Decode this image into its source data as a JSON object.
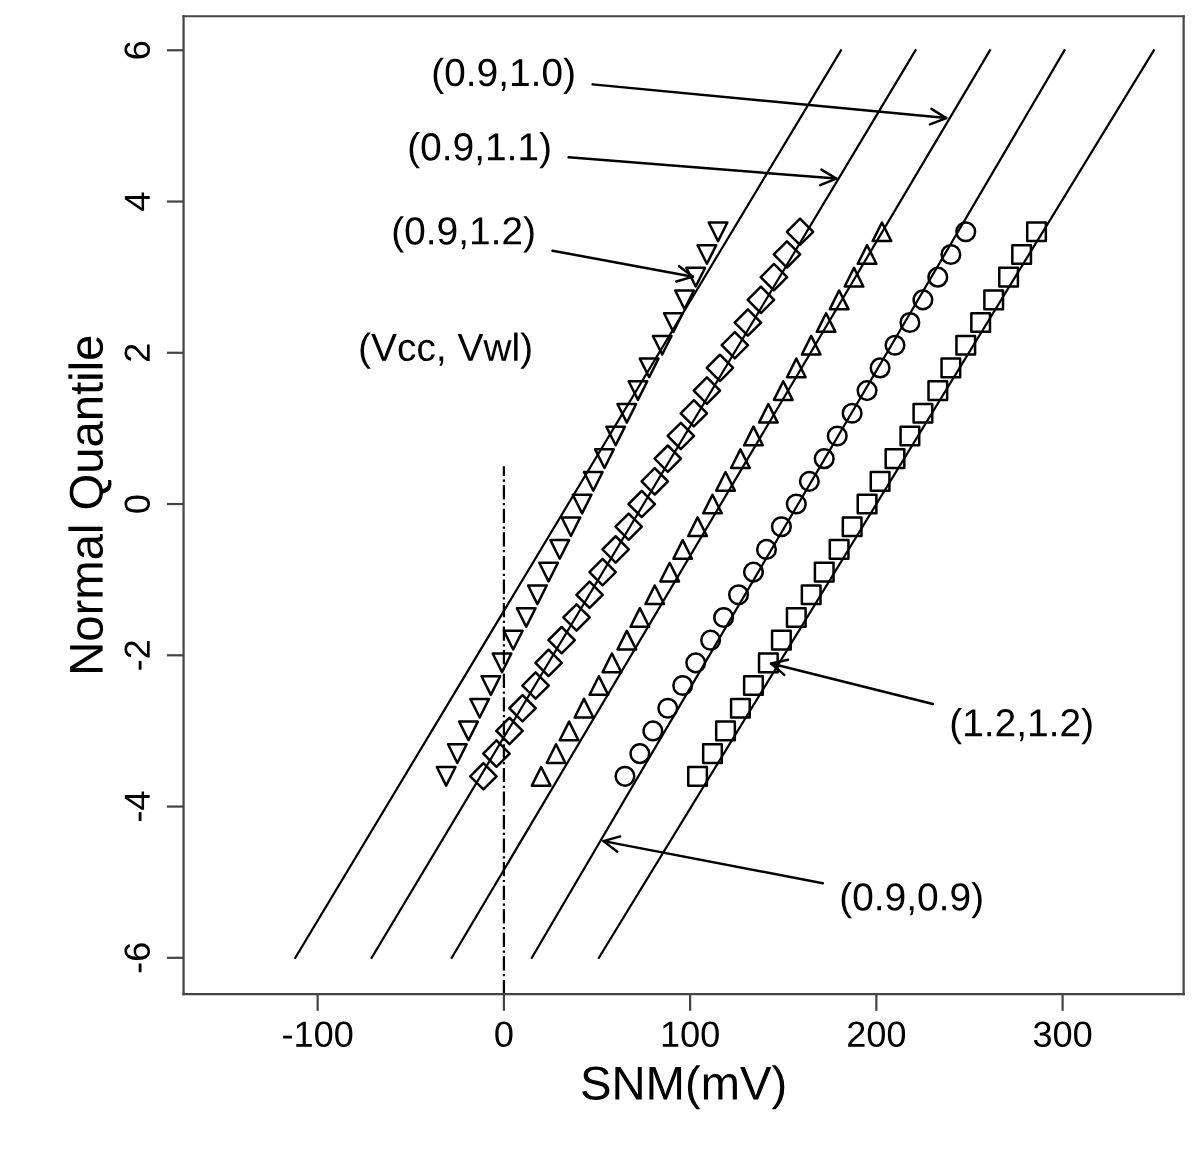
{
  "chart_data": {
    "type": "scatter",
    "xlabel": "SNM(mV)",
    "ylabel": "Normal Quantile",
    "xlim": [
      -172,
      365
    ],
    "ylim": [
      -6.48,
      6.45
    ],
    "xticks": [
      -100,
      0,
      100,
      200,
      300
    ],
    "yticks": [
      -6,
      -4,
      -2,
      0,
      2,
      4,
      6
    ],
    "grid": false,
    "legend": false,
    "series": [
      {
        "marker": "triangle_down",
        "color": "#000000",
        "x": [
          -31,
          -25,
          -19,
          -13,
          -7,
          -1,
          5,
          12,
          18,
          24,
          30,
          36,
          42,
          48,
          54,
          60,
          66,
          72,
          78,
          85,
          91,
          97,
          103,
          109,
          115
        ],
        "values": [
          -3.6,
          -3.3,
          -3.0,
          -2.7,
          -2.4,
          -2.1,
          -1.8,
          -1.5,
          -1.2,
          -0.9,
          -0.6,
          -0.3,
          0,
          0.3,
          0.6,
          0.9,
          1.2,
          1.5,
          1.8,
          2.1,
          2.4,
          2.7,
          3.0,
          3.3,
          3.6
        ]
      },
      {
        "marker": "diamond",
        "color": "#000000",
        "x": [
          -11,
          -4,
          3,
          10,
          17,
          24,
          31,
          39,
          46,
          53,
          60,
          67,
          74,
          81,
          88,
          95,
          102,
          109,
          116,
          124,
          131,
          138,
          145,
          152,
          159
        ],
        "values": [
          -3.6,
          -3.3,
          -3.0,
          -2.7,
          -2.4,
          -2.1,
          -1.8,
          -1.5,
          -1.2,
          -0.9,
          -0.6,
          -0.3,
          0,
          0.3,
          0.6,
          0.9,
          1.2,
          1.5,
          1.8,
          2.1,
          2.4,
          2.7,
          3.0,
          3.3,
          3.6
        ]
      },
      {
        "marker": "triangle",
        "color": "#000000",
        "x": [
          20,
          28,
          35,
          43,
          51,
          58,
          66,
          73,
          81,
          89,
          96,
          104,
          112,
          119,
          127,
          134,
          142,
          150,
          157,
          165,
          173,
          180,
          188,
          195,
          203
        ],
        "values": [
          -3.6,
          -3.3,
          -3.0,
          -2.7,
          -2.4,
          -2.1,
          -1.8,
          -1.5,
          -1.2,
          -0.9,
          -0.6,
          -0.3,
          0,
          0.3,
          0.6,
          0.9,
          1.2,
          1.5,
          1.8,
          2.1,
          2.4,
          2.7,
          3.0,
          3.3,
          3.6
        ]
      },
      {
        "marker": "circle",
        "color": "#000000",
        "x": [
          65,
          73,
          80,
          88,
          96,
          103,
          111,
          118,
          126,
          134,
          141,
          149,
          157,
          164,
          172,
          179,
          187,
          195,
          202,
          210,
          218,
          225,
          233,
          240,
          248
        ],
        "values": [
          -3.6,
          -3.3,
          -3.0,
          -2.7,
          -2.4,
          -2.1,
          -1.8,
          -1.5,
          -1.2,
          -0.9,
          -0.6,
          -0.3,
          0,
          0.3,
          0.6,
          0.9,
          1.2,
          1.5,
          1.8,
          2.1,
          2.4,
          2.7,
          3.0,
          3.3,
          3.6
        ]
      },
      {
        "marker": "square",
        "color": "#000000",
        "x": [
          104,
          112,
          119,
          127,
          134,
          142,
          149,
          157,
          165,
          172,
          180,
          187,
          195,
          202,
          210,
          218,
          225,
          233,
          240,
          248,
          256,
          263,
          271,
          278,
          286
        ],
        "values": [
          -3.6,
          -3.3,
          -3.0,
          -2.7,
          -2.4,
          -2.1,
          -1.8,
          -1.5,
          -1.2,
          -0.9,
          -0.6,
          -0.3,
          0,
          0.3,
          0.6,
          0.9,
          1.2,
          1.5,
          1.8,
          2.1,
          2.4,
          2.7,
          3.0,
          3.3,
          3.6
        ]
      },
      {
        "type": "line",
        "line_style": "solid",
        "color": "#000000",
        "x": [
          -112,
          181
        ],
        "values": [
          -6,
          6
        ]
      },
      {
        "type": "line",
        "line_style": "solid",
        "color": "#000000",
        "x": [
          -71,
          221
        ],
        "values": [
          -6,
          6
        ]
      },
      {
        "type": "line",
        "line_style": "solid",
        "color": "#000000",
        "x": [
          -28,
          261
        ],
        "values": [
          -6,
          6
        ]
      },
      {
        "type": "line",
        "line_style": "solid",
        "color": "#000000",
        "x": [
          15,
          301
        ],
        "values": [
          -6,
          6
        ]
      },
      {
        "type": "line",
        "line_style": "solid",
        "color": "#000000",
        "x": [
          51,
          349
        ],
        "values": [
          -6,
          6
        ]
      },
      {
        "type": "line",
        "line_style": "dashdot",
        "color": "#000000",
        "x": [
          0,
          0
        ],
        "values": [
          -6.48,
          0.5
        ]
      }
    ],
    "annotations": [
      {
        "text": "(0.9,1.0)",
        "x": 239,
        "y": 5.1
      },
      {
        "text": "(0.9,1.1)",
        "x": 180,
        "y": 4.3
      },
      {
        "text": "(0.9,1.2)",
        "x": 103,
        "y": 3.0
      },
      "(Vcc, Vwl)",
      {
        "text": "(1.2,1.2)",
        "x": 142,
        "y": -2.1
      },
      {
        "text": "(0.9,0.9)",
        "x": 52,
        "y": -4.45
      }
    ]
  }
}
